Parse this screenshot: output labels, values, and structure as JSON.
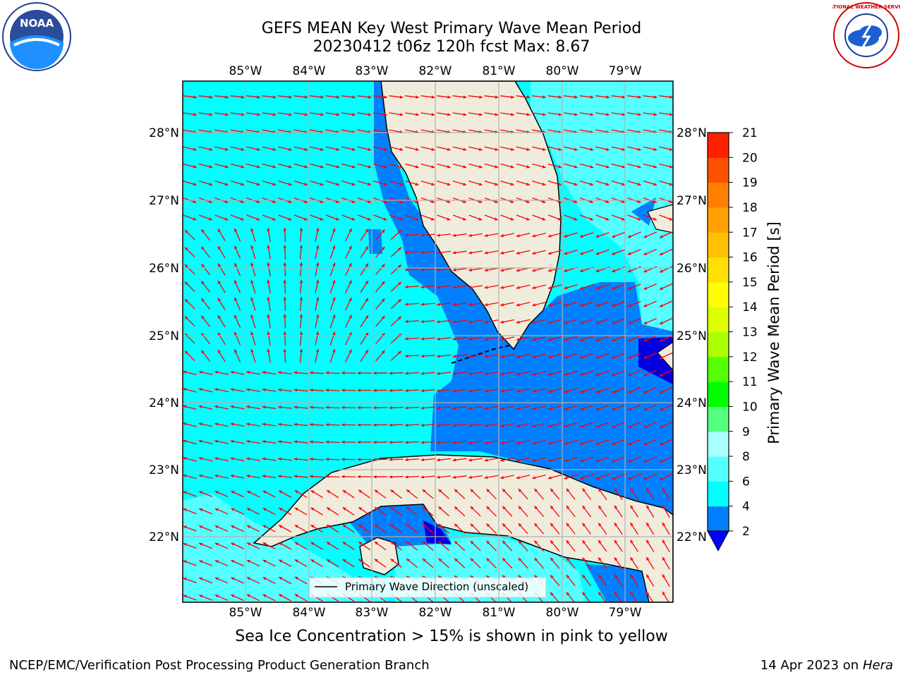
{
  "header": {
    "title_line1": "GEFS MEAN Key West Primary Wave Mean Period",
    "title_line2": "20230412 t06z 120h fcst   Max: 8.67"
  },
  "logos": {
    "left": {
      "name": "noaa-logo",
      "text": "NOAA"
    },
    "right": {
      "name": "nws-logo",
      "text": "NATIONAL WEATHER SERVICE"
    }
  },
  "map": {
    "lon_labels": [
      "85°W",
      "84°W",
      "83°W",
      "82°W",
      "81°W",
      "80°W",
      "79°W"
    ],
    "lat_labels": [
      "28°N",
      "27°N",
      "26°N",
      "25°N",
      "24°N",
      "23°N",
      "22°N"
    ],
    "legend_label": "Primary Wave Direction (unscaled)"
  },
  "colorbar": {
    "label": "Primary Wave Mean Period [s]",
    "ticks": [
      "2",
      "4",
      "6",
      "8",
      "9",
      "10",
      "11",
      "12",
      "13",
      "14",
      "15",
      "16",
      "17",
      "18",
      "19",
      "20",
      "21"
    ]
  },
  "colors": {
    "ocean_low": "#00ffff",
    "ocean_mid": "#0080ff",
    "ocean_deep": "#0000e0",
    "ocean_light": "#55ffff",
    "land": "#efecdc",
    "arrow": "#ff0000",
    "grid": "#b0b0b0"
  },
  "footer": {
    "caption": "Sea Ice Concentration > 15% is shown in pink to yellow",
    "left": "NCEP/EMC/Verification Post Processing Product Generation Branch",
    "right_date": "14 Apr 2023 on ",
    "right_host": "Hera"
  }
}
